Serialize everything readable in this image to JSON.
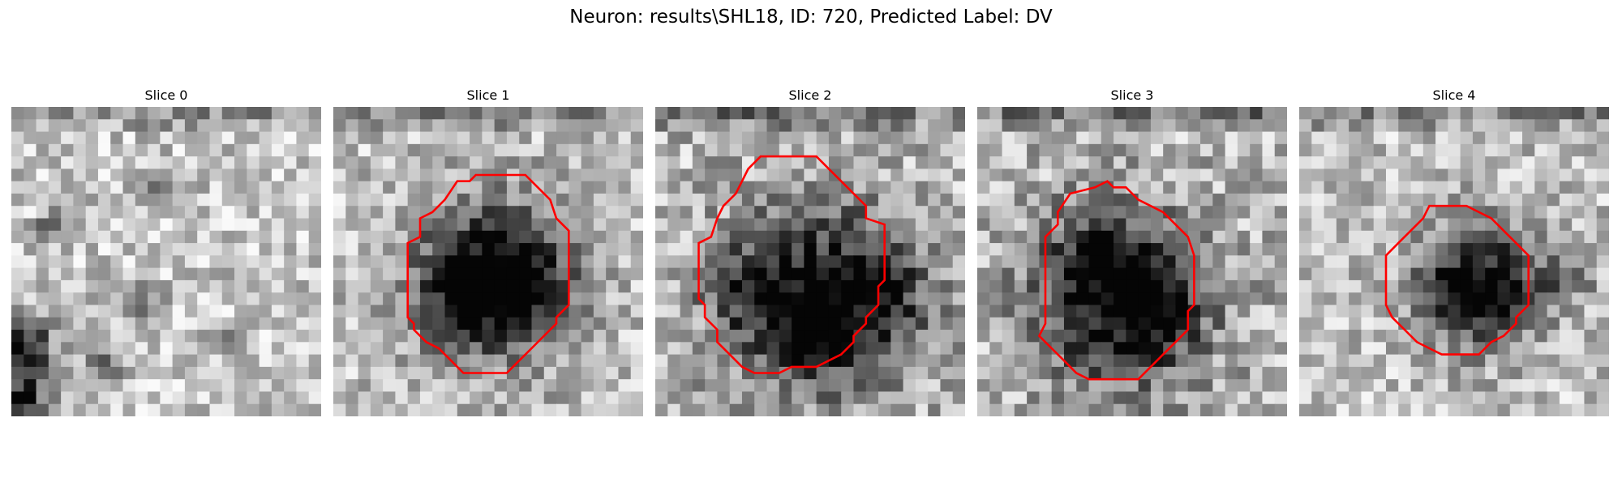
{
  "figure": {
    "title": "Neuron: results\\SHL18, ID: 720, Predicted Label: DV"
  },
  "panels": [
    {
      "title": "Slice 0",
      "has_contour": false
    },
    {
      "title": "Slice 1",
      "has_contour": true
    },
    {
      "title": "Slice 2",
      "has_contour": true
    },
    {
      "title": "Slice 3",
      "has_contour": true
    },
    {
      "title": "Slice 4",
      "has_contour": true
    }
  ],
  "colors": {
    "contour": "#ff0000",
    "colormap": "grayscale"
  }
}
